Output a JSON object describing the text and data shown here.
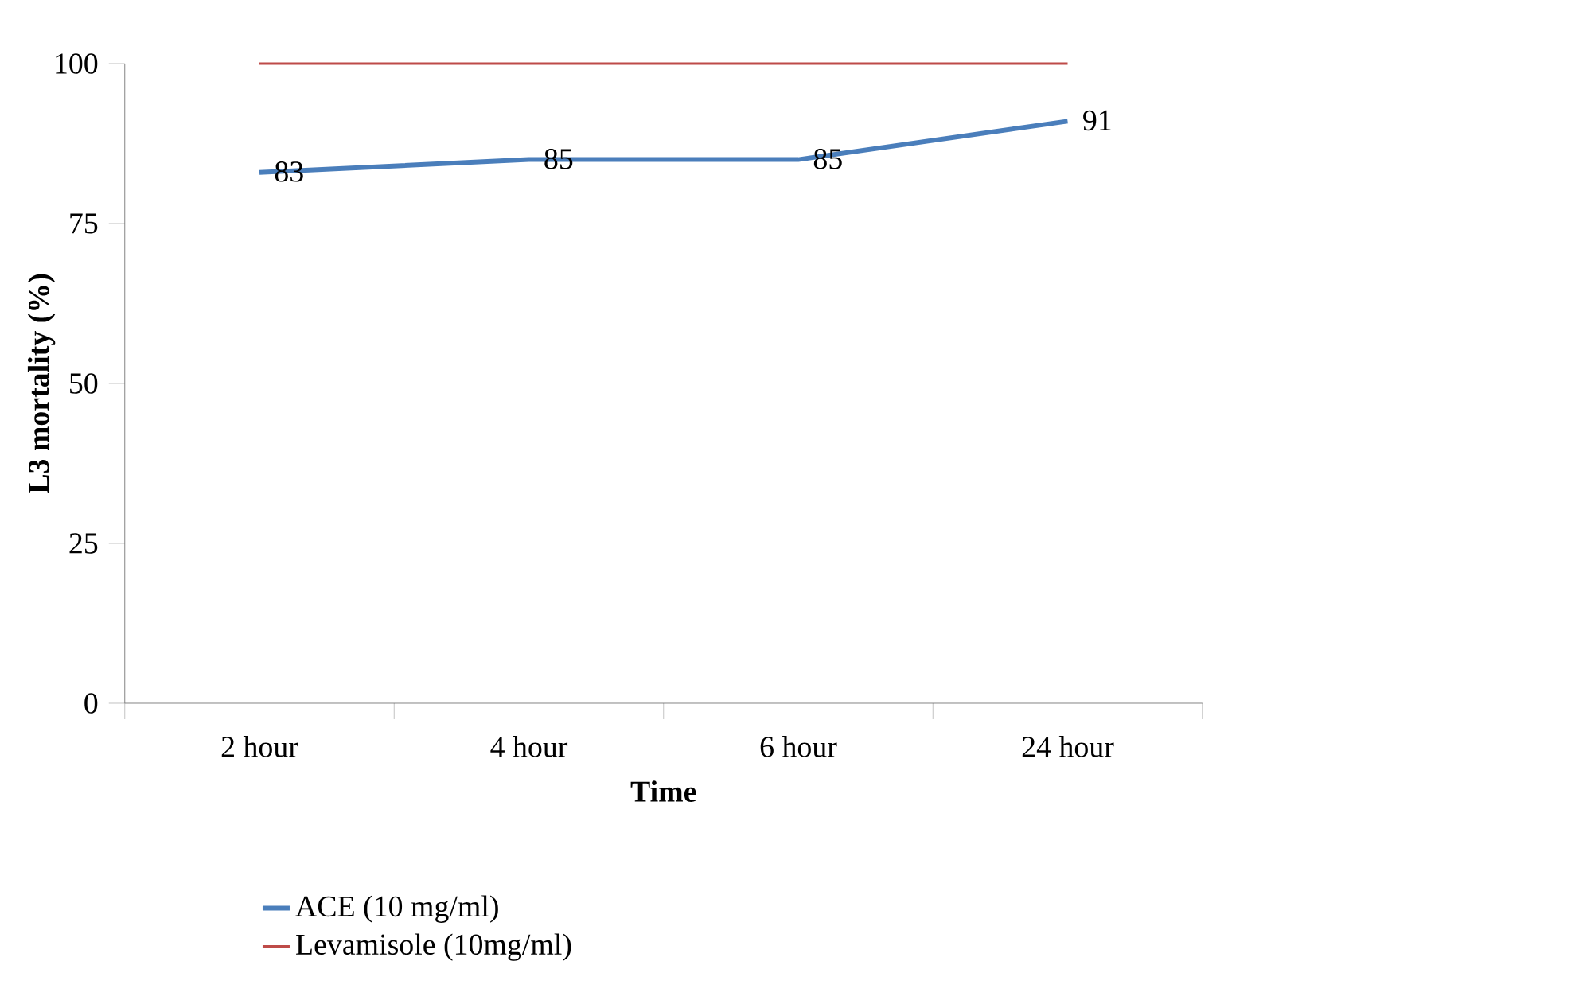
{
  "chart_data": {
    "type": "line",
    "xlabel": "Time",
    "ylabel": "L3 mortality (%)",
    "categories": [
      "2 hour",
      "4 hour",
      "6 hour",
      "24 hour"
    ],
    "series": [
      {
        "name": "ACE (10 mg/ml)",
        "color": "#4a7ebb",
        "values": [
          83,
          85,
          85,
          91
        ],
        "value_labels": [
          "83",
          "85",
          "85",
          "91"
        ]
      },
      {
        "name": "Levamisole (10mg/ml)",
        "color": "#be4b48",
        "values": [
          100,
          100,
          100,
          100
        ]
      }
    ],
    "ylim": [
      0,
      100
    ],
    "yticks": [
      0,
      25,
      50,
      75,
      100
    ],
    "grid": false,
    "legend": "bottom",
    "marker": "none",
    "line_style": "solid"
  }
}
